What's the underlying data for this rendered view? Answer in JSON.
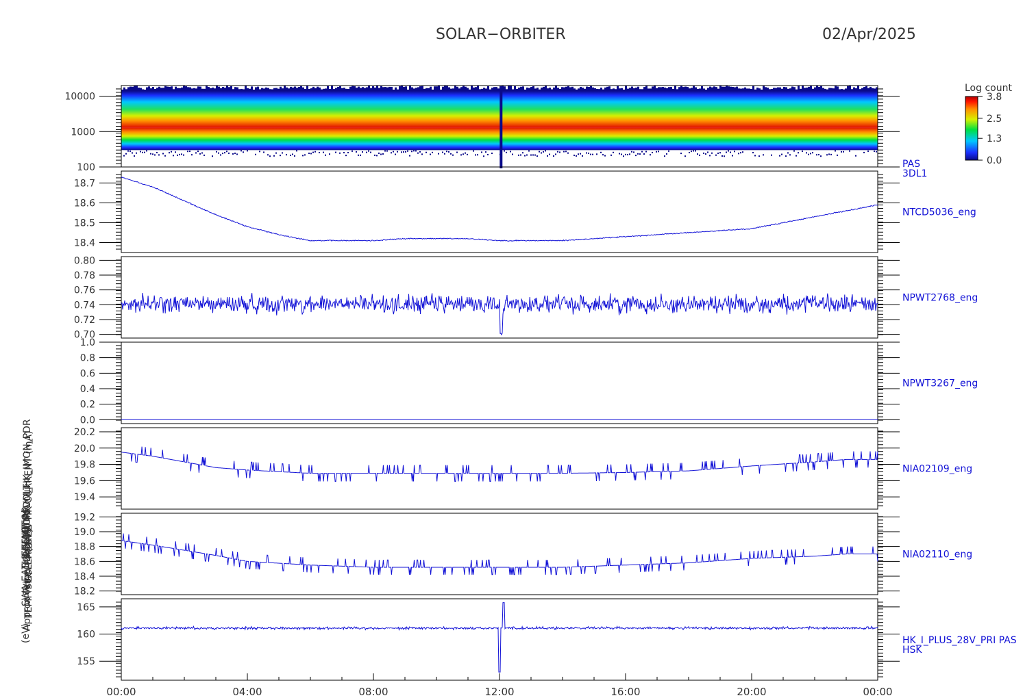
{
  "header": {
    "mission": "SOLAR−ORBITER",
    "date": "02/Apr/2025"
  },
  "y_axis_labels": [
    "(eV)",
    "Approx Temp (Deg C)",
    "TEMP SWA-EAS1 E2",
    "SWA-EAS-2 TEMP",
    "(V)",
    "LCL 4 (mV)",
    "THERMISTOR",
    "PDU MON VOLT",
    "RPW HK CURRENT (mA)",
    "(mA)",
    "PSDM_HK_IMON_PDR"
  ],
  "colors": {
    "line": "#1212d6",
    "frame": "#000000",
    "text": "#333333"
  },
  "chart_data": [
    {
      "type": "heatmap",
      "instrument": "PAS 3DL1",
      "yscale": "log",
      "ylim": [
        100,
        20000
      ],
      "yticks": [
        "10000",
        "1000",
        "100"
      ],
      "right_labels": [
        "PAS",
        "3DL1"
      ],
      "colorbar": {
        "title": "Log count",
        "ticks": [
          "3.8",
          "2.5",
          "1.3",
          "0.0"
        ],
        "range": [
          0.0,
          3.8
        ]
      },
      "peak_energy_eV": 1300,
      "band_low_edge_eV": 300,
      "band_high_edge_eV": 14000,
      "spike_time": "12:05"
    },
    {
      "type": "line",
      "right_label": "NTCD5036_eng",
      "ylim": [
        18.35,
        18.76
      ],
      "yticks": [
        "18.7",
        "18.6",
        "18.5",
        "18.4"
      ],
      "x_hours": [
        0,
        1,
        2,
        3,
        4,
        5,
        6,
        7,
        8,
        9,
        10,
        11,
        12,
        13,
        14,
        15,
        16,
        17,
        18,
        19,
        20,
        21,
        22,
        23,
        24
      ],
      "values": [
        18.73,
        18.68,
        18.61,
        18.54,
        18.48,
        18.44,
        18.41,
        18.41,
        18.41,
        18.42,
        18.42,
        18.42,
        18.41,
        18.41,
        18.41,
        18.42,
        18.43,
        18.44,
        18.45,
        18.46,
        18.47,
        18.5,
        18.53,
        18.56,
        18.59
      ],
      "noise": 0.004
    },
    {
      "type": "line",
      "right_label": "NPWT2768_eng",
      "ylim": [
        0.695,
        0.805
      ],
      "yticks": [
        "0.80",
        "0.78",
        "0.76",
        "0.74",
        "0.72",
        "0.70"
      ],
      "x_hours": [
        0,
        24
      ],
      "values": [
        0.741,
        0.741
      ],
      "noise": 0.018,
      "dips": [
        {
          "hour": 12.05,
          "value": 0.7
        }
      ]
    },
    {
      "type": "line",
      "right_label": "NPWT3267_eng",
      "ylim": [
        -0.05,
        1.0
      ],
      "yticks": [
        "1.0",
        "0.8",
        "0.6",
        "0.4",
        "0.2",
        "0.0"
      ],
      "x_hours": [
        0,
        24
      ],
      "values": [
        0.0,
        0.0
      ],
      "noise": 0.0
    },
    {
      "type": "line",
      "right_label": "NIA02109_eng",
      "ylim": [
        19.25,
        20.25
      ],
      "yticks": [
        "20.2",
        "20.0",
        "19.8",
        "19.6",
        "19.4"
      ],
      "x_hours": [
        0,
        1,
        2,
        3,
        4,
        6,
        8,
        10,
        12,
        14,
        16,
        18,
        20,
        22,
        23,
        24
      ],
      "values": [
        19.95,
        19.9,
        19.83,
        19.76,
        19.73,
        19.69,
        19.69,
        19.69,
        19.69,
        19.69,
        19.7,
        19.72,
        19.78,
        19.83,
        19.86,
        19.86
      ],
      "noise": 0.1,
      "step": 0.1
    },
    {
      "type": "line",
      "right_label": "NIA02110_eng",
      "ylim": [
        18.15,
        19.25
      ],
      "yticks": [
        "19.2",
        "19.0",
        "18.8",
        "18.6",
        "18.4",
        "18.2"
      ],
      "x_hours": [
        0,
        1,
        2,
        3,
        4,
        6,
        8,
        10,
        12,
        14,
        16,
        18,
        20,
        22,
        23,
        24
      ],
      "values": [
        18.88,
        18.82,
        18.75,
        18.68,
        18.6,
        18.55,
        18.52,
        18.52,
        18.52,
        18.52,
        18.55,
        18.58,
        18.64,
        18.67,
        18.7,
        18.7
      ],
      "noise": 0.1,
      "step": 0.1
    },
    {
      "type": "line",
      "right_labels": [
        "HK_I_PLUS_28V_PRI PAS",
        "HSK"
      ],
      "ylim": [
        151.5,
        166.5
      ],
      "yticks": [
        "165",
        "160",
        "155"
      ],
      "x_hours": [
        0,
        24
      ],
      "values": [
        161.1,
        161.1
      ],
      "noise": 0.35,
      "spike": [
        {
          "hour": 12.0,
          "value": 153.0
        },
        {
          "hour": 12.13,
          "value": 165.8
        }
      ]
    }
  ],
  "x_axis": {
    "range_hours": [
      0,
      24
    ],
    "ticks": [
      "00:00",
      "04:00",
      "08:00",
      "12:00",
      "16:00",
      "20:00",
      "00:00"
    ]
  }
}
